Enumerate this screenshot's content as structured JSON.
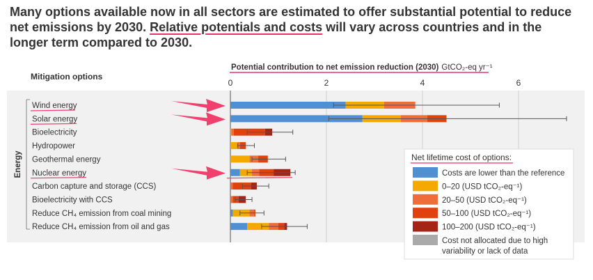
{
  "headline": {
    "part1": "Many options available now in all sectors are estimated to offer substantial potential to reduce net emissions by 2030. ",
    "highlight": "Relative potentials and costs",
    "part2": " will vary across countries and in the longer term compared to 2030."
  },
  "chart_data": {
    "type": "bar",
    "orientation": "horizontal",
    "stacked": true,
    "options_header": "Mitigation options",
    "axis_title": "Potential contribution to net emission reduction (2030)",
    "axis_unit": "GtCO₂-eq yr⁻¹",
    "xlim": [
      0,
      6
    ],
    "ticks": [
      0,
      2,
      4,
      6
    ],
    "group_label": "Energy",
    "categories": [
      "Wind energy",
      "Solar energy",
      "Bioelectricity",
      "Hydropower",
      "Geothermal energy",
      "Nuclear energy",
      "Carbon capture and storage (CCS)",
      "Bioelectricity with CCS",
      "Reduce CH₄ emission from coal mining",
      "Reduce CH₄ emission from oil and gas"
    ],
    "highlighted_categories": [
      "Wind energy",
      "Solar energy",
      "Nuclear energy"
    ],
    "series": [
      {
        "key": "lower",
        "color": "#4f8fd2",
        "values": [
          2.4,
          2.75,
          0,
          0,
          0,
          0.2,
          0,
          0,
          0.05,
          0.35
        ]
      },
      {
        "key": "c0_20",
        "color": "#f5a800",
        "values": [
          0.8,
          0.8,
          0.02,
          0.15,
          0.4,
          0.25,
          0,
          0,
          0.35,
          0.45
        ]
      },
      {
        "key": "c20_50",
        "color": "#ee6d3a",
        "values": [
          0.65,
          0.55,
          0.05,
          0.05,
          0.18,
          0.15,
          0.05,
          0.05,
          0.1,
          0.2
        ]
      },
      {
        "key": "c50_100",
        "color": "#e0420e",
        "values": [
          0,
          0.4,
          0.65,
          0.12,
          0.2,
          0.3,
          0.38,
          0.12,
          0.02,
          0.12
        ]
      },
      {
        "key": "c100_200",
        "color": "#a52416",
        "values": [
          0,
          0,
          0.15,
          0,
          0,
          0.35,
          0.12,
          0.15,
          0,
          0.06
        ]
      },
      {
        "key": "unallocated",
        "color": "#aaaaaa",
        "values": [
          0,
          0,
          0,
          0,
          0,
          0,
          0,
          0,
          0,
          0
        ]
      }
    ],
    "error_bars": [
      [
        2.15,
        5.6
      ],
      [
        2.05,
        7.0
      ],
      [
        0.35,
        1.3
      ],
      [
        0.15,
        0.5
      ],
      [
        0.45,
        1.15
      ],
      [
        0.35,
        1.35
      ],
      [
        0.25,
        0.8
      ],
      [
        0.1,
        0.45
      ],
      [
        0.2,
        0.7
      ],
      [
        0.65,
        1.6
      ]
    ],
    "legend": {
      "title": "Net lifetime cost of options:",
      "position": "bottom-right",
      "items": [
        {
          "key": "lower",
          "color": "#4f8fd2",
          "label": "Costs are lower than the reference"
        },
        {
          "key": "c0_20",
          "color": "#f5a800",
          "label": "0–20 (USD tCO₂-eq⁻¹)"
        },
        {
          "key": "c20_50",
          "color": "#ee6d3a",
          "label": "20–50 (USD tCO₂-eq⁻¹)"
        },
        {
          "key": "c50_100",
          "color": "#e0420e",
          "label": "50–100 (USD tCO₂-eq⁻¹)"
        },
        {
          "key": "c100_200",
          "color": "#a52416",
          "label": "100–200 (USD tCO₂-eq⁻¹)"
        },
        {
          "key": "unallocated",
          "color": "#aaaaaa",
          "label": "Cost not allocated due to high",
          "label2": "variability or lack of data"
        }
      ]
    },
    "annotation_color": "#f0406e"
  }
}
